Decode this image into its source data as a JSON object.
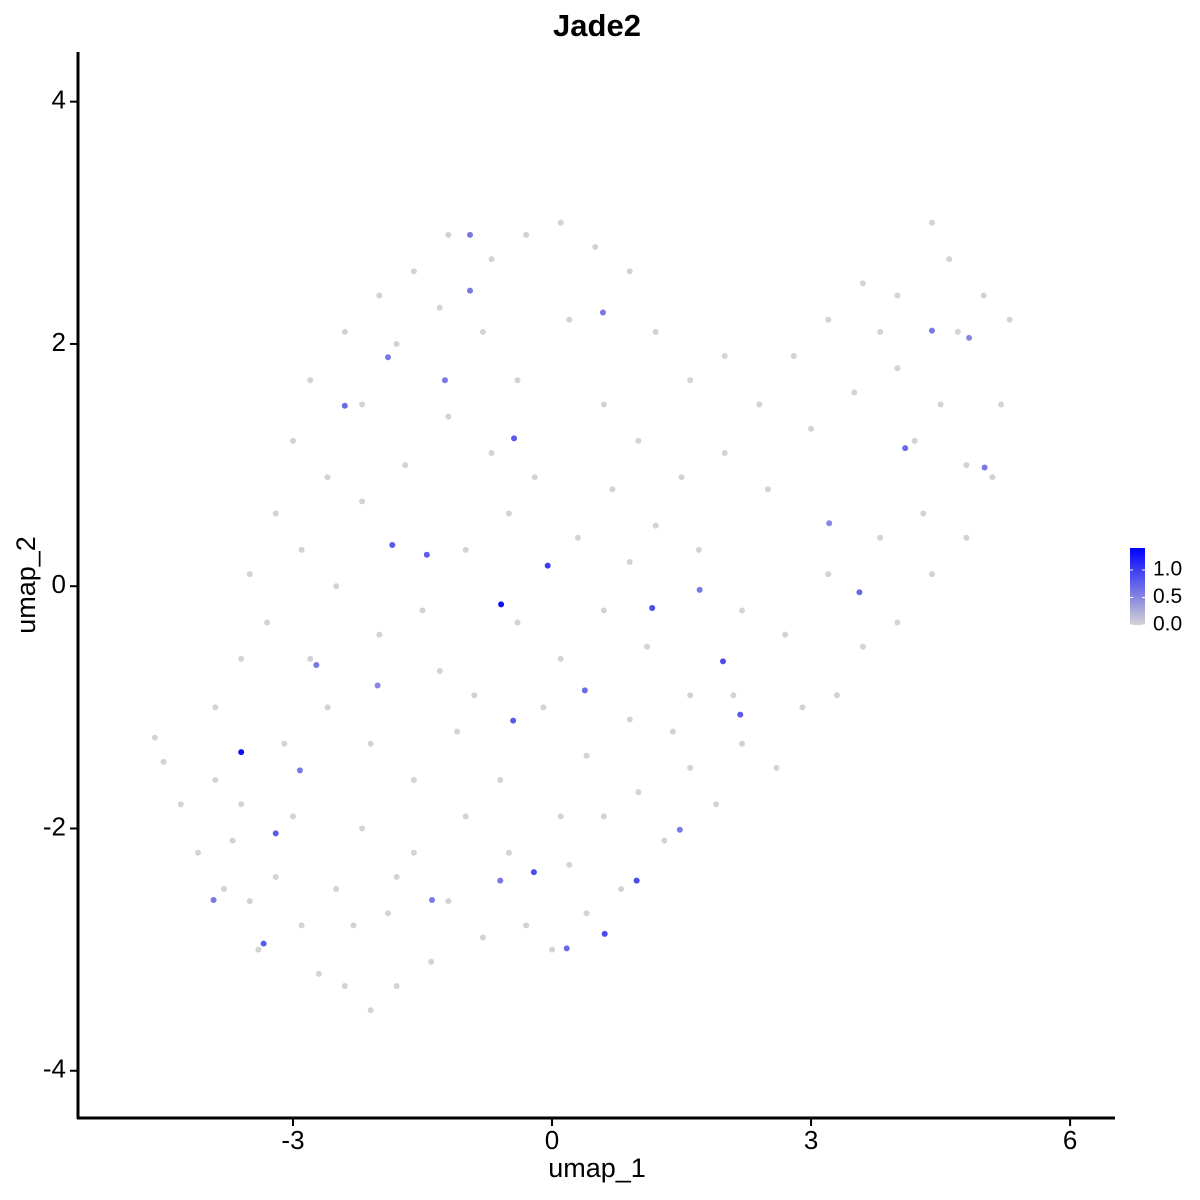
{
  "chart_data": {
    "type": "scatter",
    "title": "Jade2",
    "xlabel": "umap_1",
    "ylabel": "umap_2",
    "xlim": [
      -5.49,
      6.52
    ],
    "ylim": [
      -4.39,
      4.41
    ],
    "xticks": [
      -3,
      0,
      3,
      6
    ],
    "yticks": [
      -4,
      -2,
      0,
      2,
      4
    ],
    "x": [
      -4.6,
      -4.5,
      -4.3,
      -4.1,
      -3.9,
      -3.7,
      -3.5,
      -3.4,
      -3.2,
      -3.0,
      -2.9,
      -2.7,
      -2.5,
      -2.4,
      -2.2,
      -2.1,
      -1.9,
      -1.8,
      -1.6,
      -1.4,
      -1.2,
      -1.0,
      -0.8,
      -0.5,
      -0.3,
      0.0,
      0.2,
      0.4,
      0.6,
      0.8,
      1.0,
      1.3,
      1.6,
      1.9,
      2.2,
      2.6,
      2.9,
      3.3,
      3.6,
      4.0,
      4.4,
      4.8,
      5.1,
      5.2,
      5.3,
      5.0,
      4.6,
      4.4,
      4.0,
      3.6,
      3.2,
      2.8,
      2.4,
      2.0,
      1.6,
      1.2,
      0.9,
      0.5,
      0.1,
      -0.3,
      -0.7,
      -1.2,
      -1.6,
      -2.0,
      -2.4,
      -2.8,
      -3.0,
      -3.2,
      -3.5,
      -3.6,
      -3.9,
      -3.3,
      -2.9,
      -2.6,
      -2.2,
      -1.8,
      -1.3,
      -0.8,
      -0.4,
      0.2,
      0.6,
      1.0,
      1.5,
      2.0,
      2.5,
      3.0,
      3.5,
      4.0,
      4.5,
      4.8,
      4.3,
      3.8,
      3.2,
      2.7,
      2.2,
      1.7,
      1.2,
      0.7,
      0.3,
      -0.2,
      -0.7,
      -1.2,
      -1.7,
      -2.2,
      -2.5,
      -2.0,
      -1.5,
      -1.0,
      -0.4,
      0.1,
      0.6,
      1.1,
      1.6,
      2.1,
      1.4,
      0.9,
      0.4,
      -0.1,
      -0.6,
      -1.1,
      -1.6,
      -2.1,
      -2.6,
      -3.1,
      -2.8,
      -2.3,
      -1.3,
      -0.9,
      0.1,
      -0.5,
      0.9,
      4.7,
      4.2,
      3.8,
      -1.8,
      -3.8,
      -3.6,
      -3.6,
      -0.59,
      -0.05,
      1.16,
      1.98,
      0.61,
      0.98,
      0.17,
      -0.21,
      -0.95,
      -1.9,
      -2.4,
      -2.73,
      -1.45,
      -1.85,
      -0.44,
      3.56,
      4.4,
      4.83,
      -3.2,
      -3.34,
      -3.92,
      -0.45,
      0.38,
      1.71,
      2.18,
      3.21,
      4.09,
      -2.02,
      -0.95,
      0.59,
      -1.24,
      -0.6,
      -1.39,
      1.48,
      -2.92,
      5.01
    ],
    "y": [
      -1.25,
      -1.45,
      -1.8,
      -2.2,
      -1.6,
      -2.1,
      -2.6,
      -3.0,
      -2.4,
      -1.9,
      -2.8,
      -3.2,
      -2.5,
      -3.3,
      -2.0,
      -3.5,
      -2.7,
      -3.3,
      -2.2,
      -3.1,
      -2.6,
      -1.9,
      -2.9,
      -2.2,
      -2.8,
      -3.0,
      -2.3,
      -2.7,
      -1.9,
      -2.5,
      -1.7,
      -2.1,
      -1.5,
      -1.8,
      -1.3,
      -1.5,
      -1.0,
      -0.9,
      -0.5,
      -0.3,
      0.1,
      0.4,
      0.9,
      1.5,
      2.2,
      2.4,
      2.7,
      3.0,
      2.4,
      2.5,
      2.2,
      1.9,
      1.5,
      1.9,
      1.7,
      2.1,
      2.6,
      2.8,
      3.0,
      2.9,
      2.7,
      2.9,
      2.6,
      2.4,
      2.1,
      1.7,
      1.2,
      0.6,
      0.1,
      -0.6,
      -1.0,
      -0.3,
      0.3,
      0.9,
      1.5,
      2.0,
      2.3,
      2.1,
      1.7,
      2.2,
      1.5,
      1.2,
      0.9,
      1.1,
      0.8,
      1.3,
      1.6,
      1.8,
      1.5,
      1.0,
      0.6,
      0.4,
      0.1,
      -0.4,
      -0.2,
      0.3,
      0.5,
      0.8,
      0.4,
      0.9,
      1.1,
      1.4,
      1.0,
      0.7,
      0.0,
      -0.4,
      -0.2,
      0.3,
      -0.3,
      -0.6,
      -0.2,
      -0.5,
      -0.9,
      -0.9,
      -1.2,
      -1.1,
      -1.4,
      -1.0,
      -1.6,
      -1.2,
      -1.6,
      -1.3,
      -1.0,
      -1.3,
      -0.6,
      -2.8,
      -0.7,
      -0.9,
      -1.9,
      0.6,
      0.2,
      2.1,
      1.2,
      2.1,
      -2.4,
      -2.5,
      -1.8,
      -1.37,
      -0.15,
      0.17,
      -0.18,
      -0.62,
      -2.87,
      -2.43,
      -2.99,
      -2.36,
      2.9,
      1.89,
      1.49,
      -0.65,
      0.26,
      0.34,
      1.22,
      -0.05,
      2.11,
      2.05,
      -2.04,
      -2.95,
      -2.59,
      -1.11,
      -0.86,
      -0.03,
      -1.06,
      0.52,
      1.14,
      -0.82,
      2.44,
      2.26,
      1.7,
      -2.43,
      -2.59,
      -2.01,
      -1.52,
      0.98
    ],
    "values": [
      0,
      0,
      0,
      0,
      0,
      0,
      0,
      0,
      0,
      0,
      0,
      0,
      0,
      0,
      0,
      0,
      0,
      0,
      0,
      0,
      0,
      0,
      0,
      0,
      0,
      0,
      0,
      0,
      0,
      0,
      0,
      0,
      0,
      0,
      0,
      0,
      0,
      0,
      0,
      0,
      0,
      0,
      0,
      0,
      0,
      0,
      0,
      0,
      0,
      0,
      0,
      0,
      0,
      0,
      0,
      0,
      0,
      0,
      0,
      0,
      0,
      0,
      0,
      0,
      0,
      0,
      0,
      0,
      0,
      0,
      0,
      0,
      0,
      0,
      0,
      0,
      0,
      0,
      0,
      0,
      0,
      0,
      0,
      0,
      0,
      0,
      0,
      0,
      0,
      0,
      0,
      0,
      0,
      0,
      0,
      0,
      0,
      0,
      0,
      0,
      0,
      0,
      0,
      0,
      0,
      0,
      0,
      0,
      0,
      0,
      0,
      0,
      0,
      0,
      0,
      0,
      0,
      0,
      0,
      0,
      0,
      0,
      0,
      0,
      0,
      0,
      0,
      0,
      0,
      0,
      0,
      0,
      0,
      0,
      0,
      0,
      0,
      1.3,
      1.3,
      1.0,
      0.9,
      0.9,
      0.9,
      0.9,
      0.7,
      0.9,
      0.6,
      0.6,
      0.7,
      0.6,
      0.8,
      0.8,
      0.8,
      0.7,
      0.6,
      0.5,
      0.8,
      0.8,
      0.6,
      0.8,
      0.7,
      0.6,
      0.8,
      0.5,
      0.7,
      0.5,
      0.6,
      0.6,
      0.6,
      0.6,
      0.6,
      0.6,
      0.6,
      0.6
    ],
    "color_low": "#d3d3d3",
    "color_high": "#0000ff",
    "color_lim": [
      0,
      1.4
    ],
    "color_ticks": [
      {
        "value": 0,
        "label": "0.0"
      },
      {
        "value": 0.5,
        "label": "0.5"
      },
      {
        "value": 1,
        "label": "1.0"
      }
    ]
  }
}
